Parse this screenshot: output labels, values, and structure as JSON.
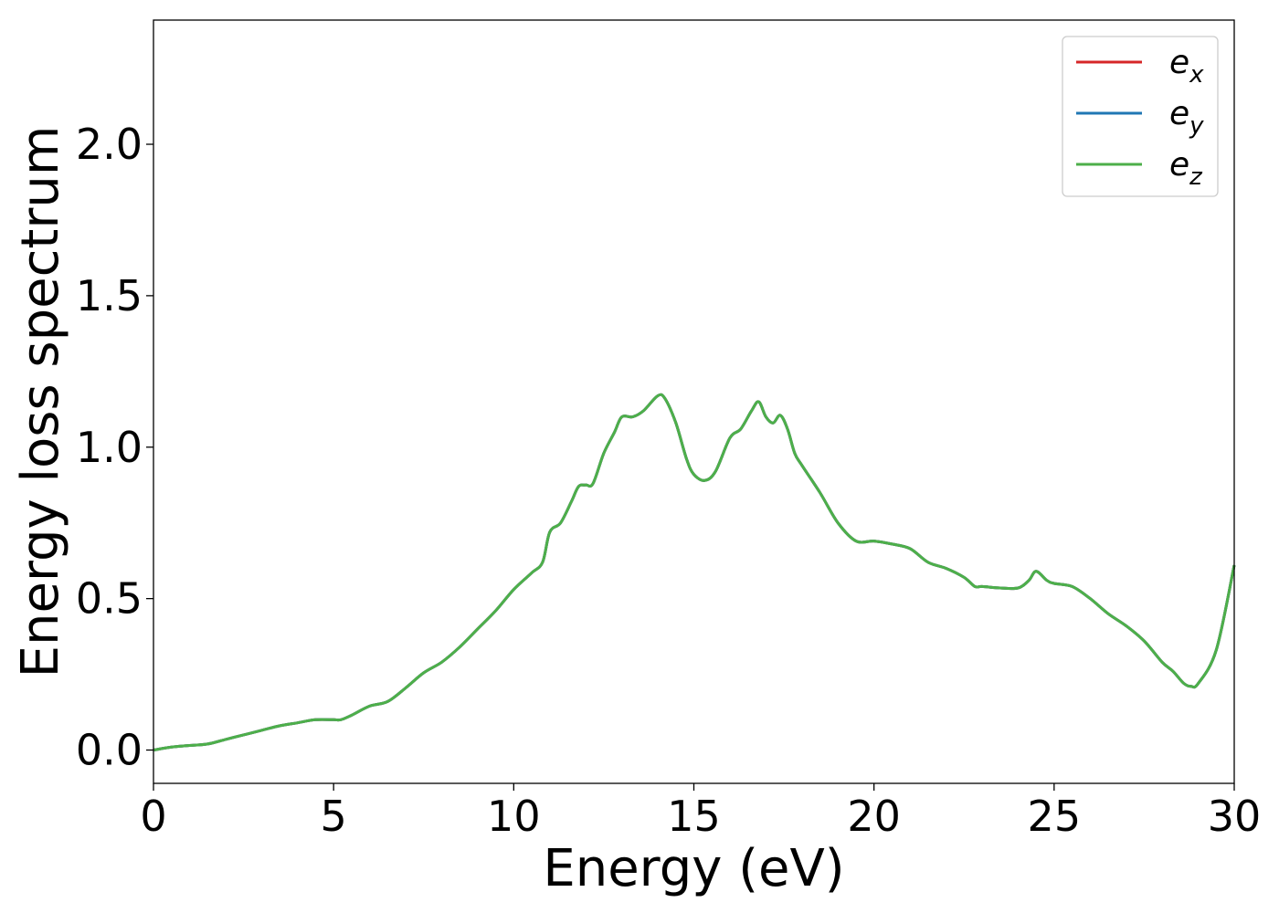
{
  "chart_data": {
    "type": "line",
    "xlabel": "Energy (eV)",
    "ylabel": "Energy loss spectrum",
    "xlim": [
      0,
      30
    ],
    "ylim": [
      -0.11,
      2.41
    ],
    "xticks": [
      0,
      5,
      10,
      15,
      20,
      25,
      30
    ],
    "yticks": [
      0.0,
      0.5,
      1.0,
      1.5,
      2.0
    ],
    "xtick_labels": [
      "0",
      "5",
      "10",
      "15",
      "20",
      "25",
      "30"
    ],
    "ytick_labels": [
      "0.0",
      "0.5",
      "1.0",
      "1.5",
      "2.0"
    ],
    "grid": false,
    "legend_position": "top-right",
    "series": [
      {
        "name": "e",
        "subscript": "x",
        "color": "#d62728"
      },
      {
        "name": "e",
        "subscript": "y",
        "color": "#1f77b4"
      },
      {
        "name": "e",
        "subscript": "z",
        "color": "#4daf4a"
      }
    ],
    "shared_curve": {
      "x": [
        0,
        0.5,
        1,
        1.5,
        2,
        2.5,
        3,
        3.5,
        4,
        4.5,
        5,
        5.2,
        5.5,
        6,
        6.5,
        7,
        7.5,
        8,
        8.5,
        9,
        9.5,
        10,
        10.5,
        10.8,
        11,
        11.3,
        11.6,
        11.8,
        12,
        12.2,
        12.5,
        12.8,
        13,
        13.3,
        13.6,
        14,
        14.2,
        14.5,
        14.8,
        15,
        15.3,
        15.6,
        16,
        16.3,
        16.6,
        16.8,
        17,
        17.2,
        17.4,
        17.6,
        17.8,
        18,
        18.5,
        19,
        19.5,
        20,
        20.5,
        21,
        21.5,
        22,
        22.5,
        22.8,
        23,
        23.5,
        24,
        24.3,
        24.5,
        24.8,
        25,
        25.5,
        26,
        26.5,
        27,
        27.5,
        28,
        28.3,
        28.6,
        28.8,
        29,
        29.5,
        30
      ],
      "y": [
        0.0,
        0.01,
        0.015,
        0.02,
        0.035,
        0.05,
        0.065,
        0.08,
        0.09,
        0.1,
        0.1,
        0.1,
        0.115,
        0.145,
        0.16,
        0.205,
        0.255,
        0.29,
        0.34,
        0.4,
        0.46,
        0.53,
        0.585,
        0.62,
        0.72,
        0.75,
        0.82,
        0.87,
        0.875,
        0.88,
        0.98,
        1.05,
        1.1,
        1.1,
        1.12,
        1.17,
        1.16,
        1.08,
        0.96,
        0.91,
        0.89,
        0.92,
        1.03,
        1.06,
        1.12,
        1.15,
        1.1,
        1.08,
        1.105,
        1.06,
        0.98,
        0.94,
        0.85,
        0.75,
        0.69,
        0.69,
        0.68,
        0.665,
        0.62,
        0.6,
        0.57,
        0.54,
        0.54,
        0.535,
        0.535,
        0.56,
        0.59,
        0.56,
        0.55,
        0.54,
        0.5,
        0.45,
        0.41,
        0.36,
        0.29,
        0.26,
        0.22,
        0.21,
        0.22,
        0.33,
        0.61
      ]
    }
  }
}
